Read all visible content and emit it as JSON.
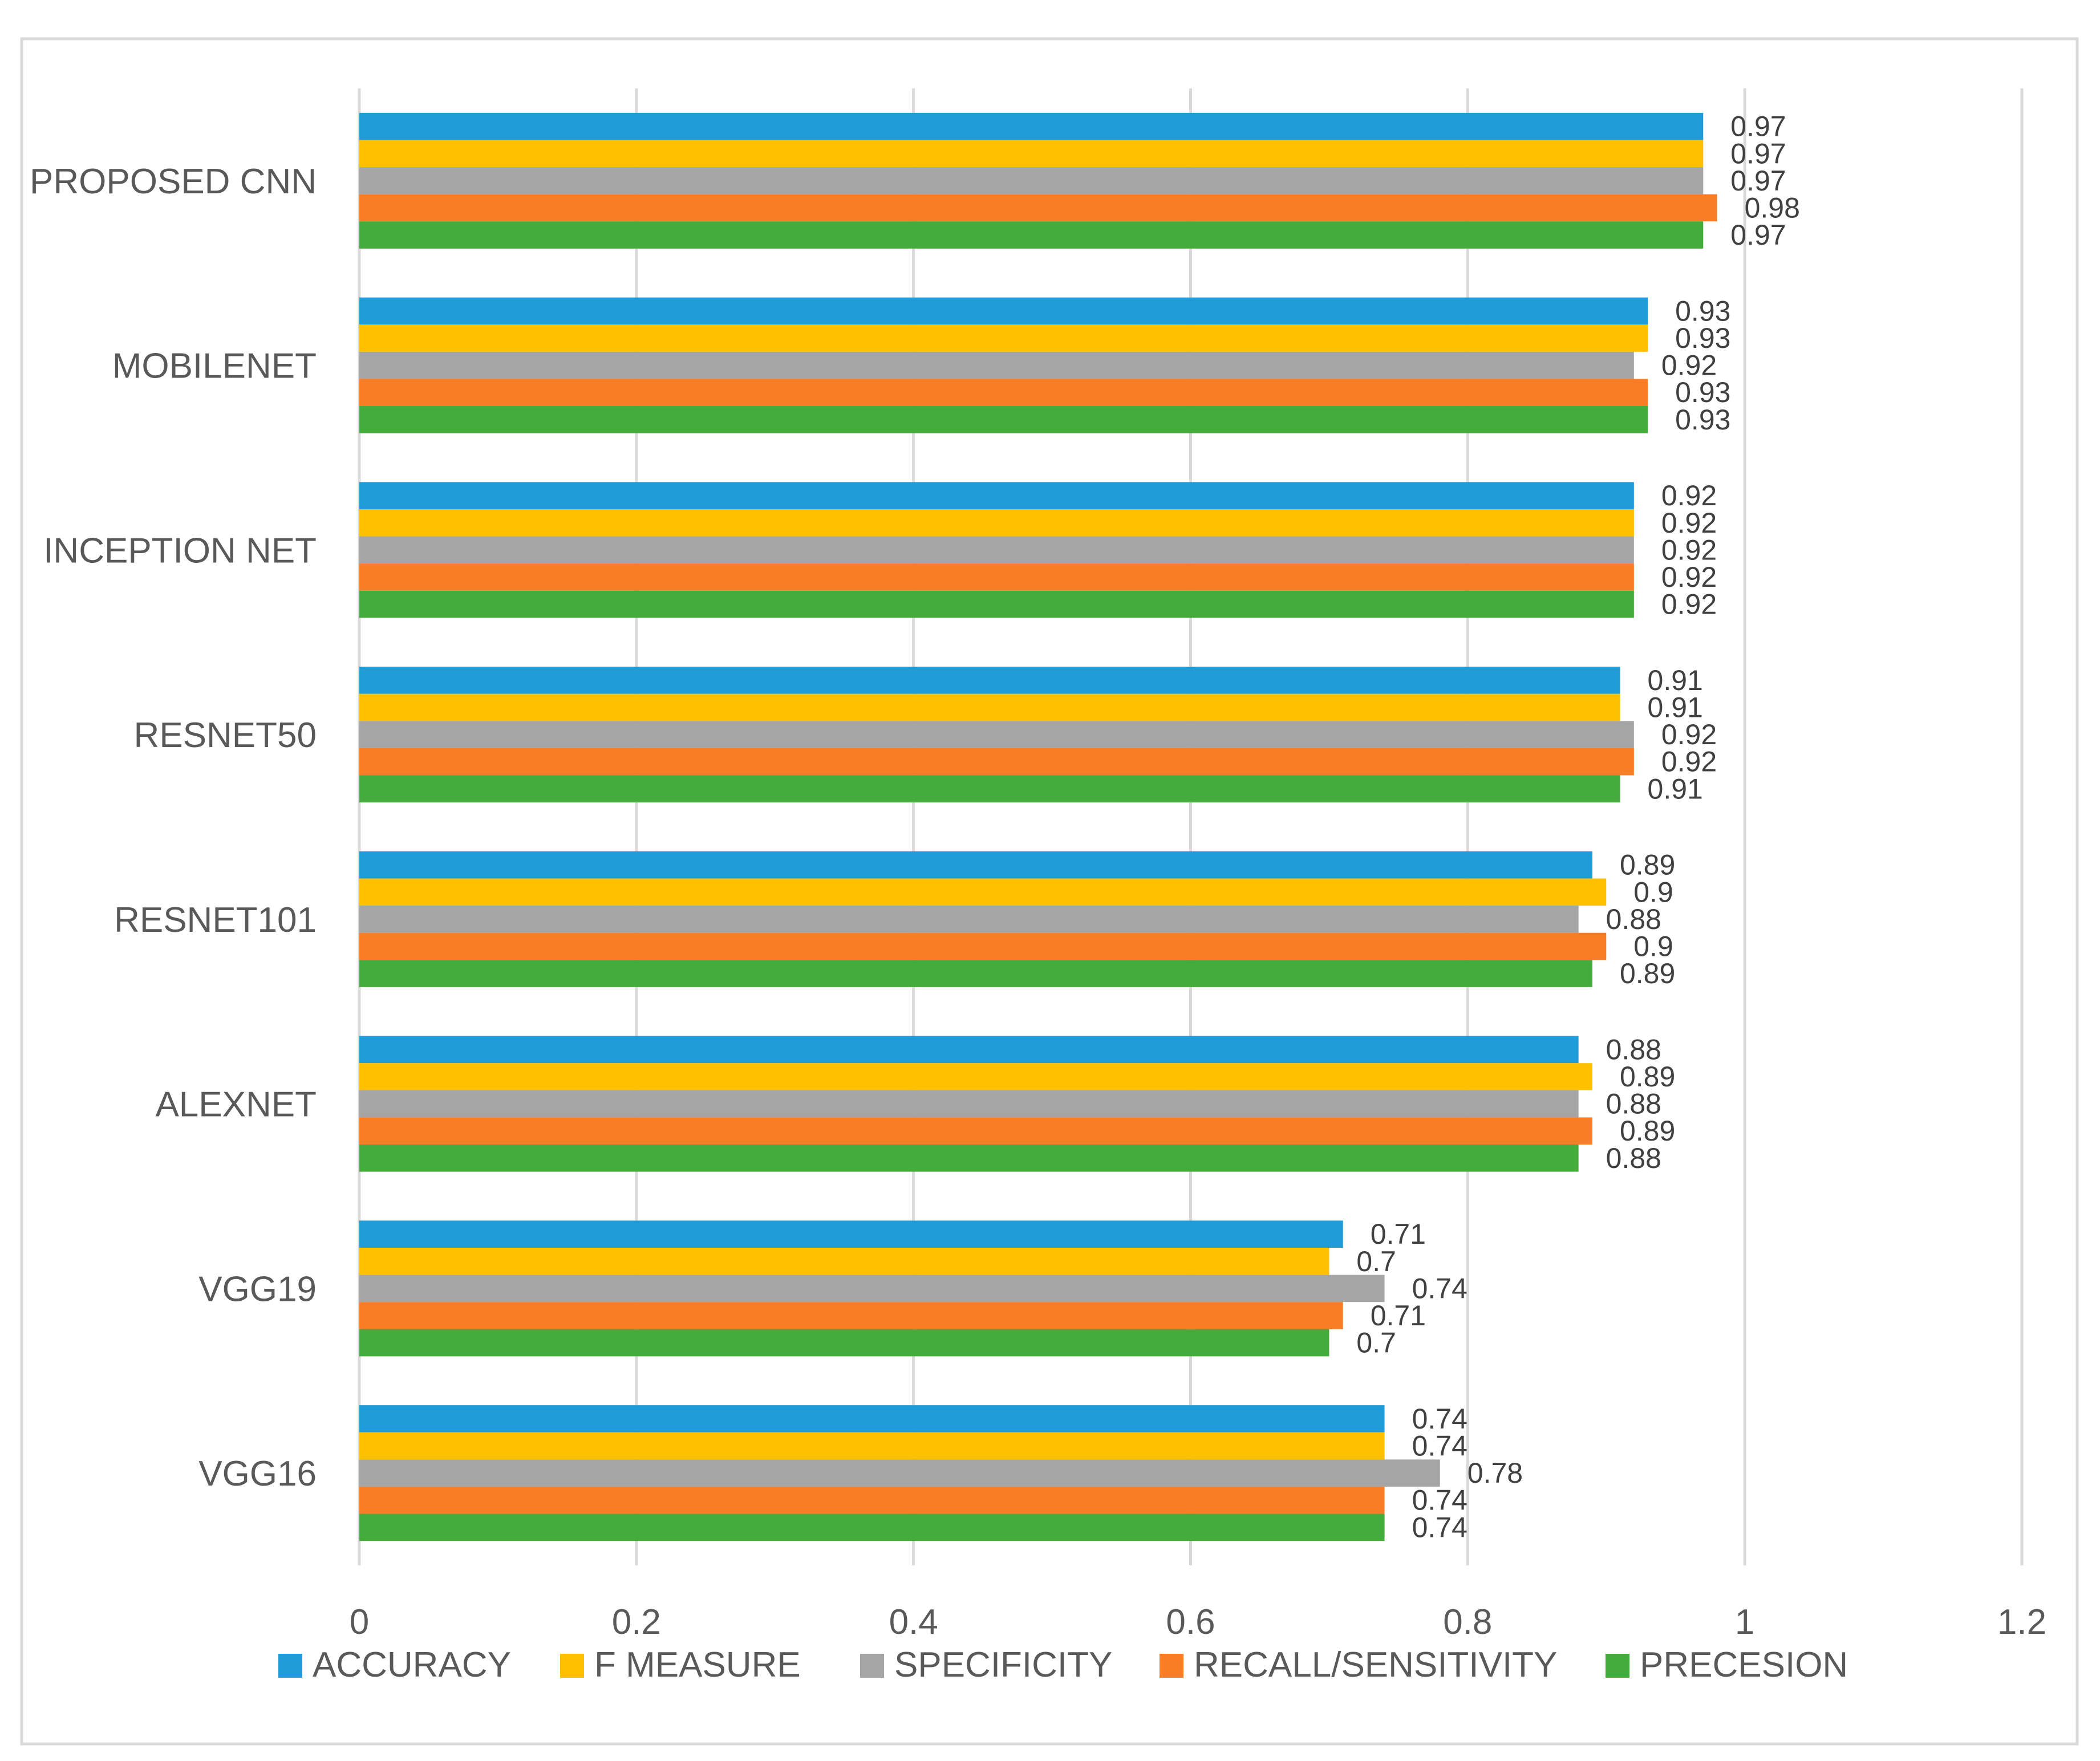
{
  "chart_data": {
    "type": "bar",
    "orientation": "horizontal",
    "title": "",
    "xlabel": "",
    "ylabel": "",
    "xlim": [
      0,
      1.2
    ],
    "x_ticks": [
      "0",
      "0.2",
      "0.4",
      "0.6",
      "0.8",
      "1",
      "1.2"
    ],
    "grid": "vertical",
    "legend_position": "bottom",
    "categories": [
      "PROPOSED CNN",
      "MOBILENET",
      "INCEPTION NET",
      "RESNET50",
      "RESNET101",
      "ALEXNET",
      "VGG19",
      "VGG16"
    ],
    "series": [
      {
        "name": "ACCURACY",
        "color": "#1F9CD8",
        "values": [
          0.97,
          0.93,
          0.92,
          0.91,
          0.89,
          0.88,
          0.71,
          0.74
        ],
        "labels": [
          "0.97",
          "0.93",
          "0.92",
          "0.91",
          "0.89",
          "0.88",
          "0.71",
          "0.74"
        ]
      },
      {
        "name": "F MEASURE",
        "color": "#FFC000",
        "values": [
          0.97,
          0.93,
          0.92,
          0.91,
          0.9,
          0.89,
          0.7,
          0.74
        ],
        "labels": [
          "0.97",
          "0.93",
          "0.92",
          "0.91",
          "0.9",
          "0.89",
          "0.7",
          "0.74"
        ]
      },
      {
        "name": "SPECIFICITY",
        "color": "#A5A5A5",
        "values": [
          0.97,
          0.92,
          0.92,
          0.92,
          0.88,
          0.88,
          0.74,
          0.78
        ],
        "labels": [
          "0.97",
          "0.92",
          "0.92",
          "0.92",
          "0.88",
          "0.88",
          "0.74",
          "0.78"
        ]
      },
      {
        "name": "RECALL/SENSITIVITY",
        "color": "#F97D26",
        "values": [
          0.98,
          0.93,
          0.92,
          0.92,
          0.9,
          0.89,
          0.71,
          0.74
        ],
        "labels": [
          "0.98",
          "0.93",
          "0.92",
          "0.92",
          "0.9",
          "0.89",
          "0.71",
          "0.74"
        ]
      },
      {
        "name": "PRECESION",
        "color": "#43AC3B",
        "values": [
          0.97,
          0.93,
          0.92,
          0.91,
          0.89,
          0.88,
          0.7,
          0.74
        ],
        "labels": [
          "0.97",
          "0.93",
          "0.92",
          "0.91",
          "0.89",
          "0.88",
          "0.7",
          "0.74"
        ]
      }
    ]
  }
}
